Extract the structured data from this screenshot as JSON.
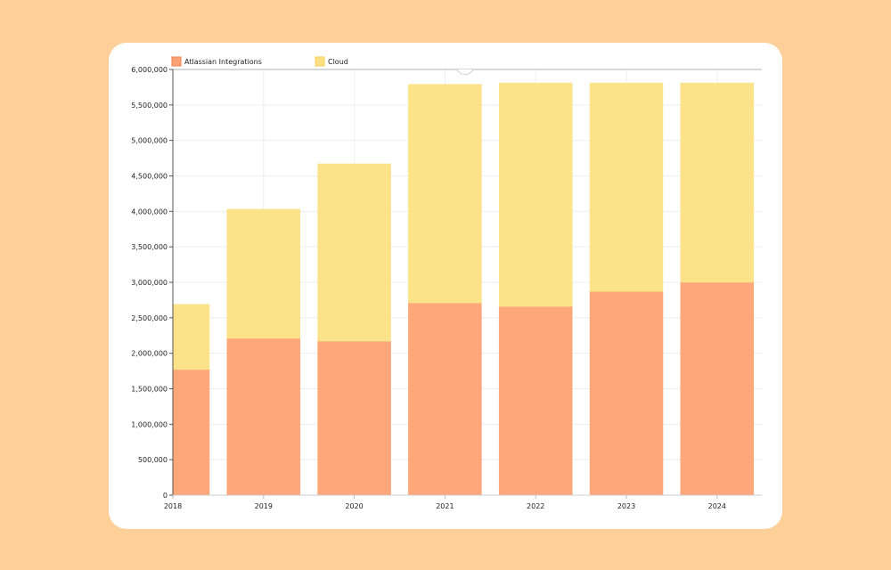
{
  "chart_data": {
    "type": "bar",
    "stacked": true,
    "title": "",
    "xlabel": "",
    "ylabel": "",
    "categories": [
      "2018",
      "2019",
      "2020",
      "2021",
      "2022",
      "2023",
      "2024"
    ],
    "series": [
      {
        "name": "Atlassian Integrations",
        "color": "#fda274",
        "values": [
          1770000,
          2210000,
          2170000,
          2710000,
          2660000,
          2870000,
          3000000
        ]
      },
      {
        "name": "Cloud",
        "color": "#fce184",
        "values": [
          920000,
          1820000,
          2500000,
          3080000,
          3150000,
          2940000,
          2810000
        ]
      }
    ],
    "ylim": [
      0,
      6000000
    ],
    "yticks": [
      "0",
      "500,000",
      "1,000,000",
      "1,500,000",
      "2,000,000",
      "2,500,000",
      "3,000,000",
      "3,500,000",
      "4,000,000",
      "4,500,000",
      "5,000,000",
      "5,500,000",
      "6,000,000"
    ],
    "grid": true,
    "legend_position": "top-left"
  }
}
